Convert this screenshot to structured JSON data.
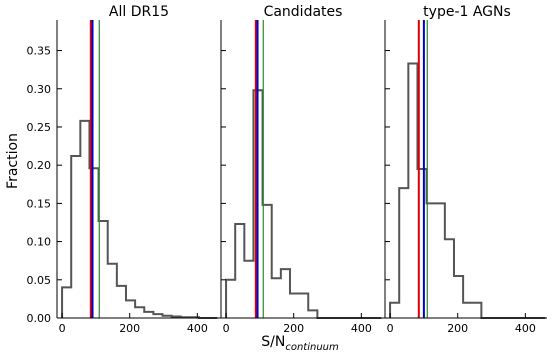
{
  "figure": {
    "ylabel": "Fraction",
    "xlabel_main": "S/N",
    "xlabel_sub": "continuum"
  },
  "colors": {
    "hist": "#555555",
    "red_line": "#e00000",
    "blue_line": "#0000cc",
    "green_line": "#2a8a2a"
  },
  "chart_data": [
    {
      "type": "histogram",
      "title": "All DR15",
      "xlim": [
        -15,
        470
      ],
      "ylim": [
        0,
        0.39
      ],
      "xticks": [
        0,
        200,
        400
      ],
      "yticks": [
        0.0,
        0.05,
        0.1,
        0.15,
        0.2,
        0.25,
        0.3,
        0.35
      ],
      "bins": [
        0,
        27,
        54,
        81,
        108,
        135,
        162,
        189,
        216,
        243,
        270,
        297,
        324,
        351,
        378,
        405,
        432,
        459
      ],
      "values": [
        0.04,
        0.212,
        0.258,
        0.196,
        0.127,
        0.071,
        0.042,
        0.023,
        0.014,
        0.008,
        0.005,
        0.003,
        0.002,
        0.001,
        0.001,
        0.0,
        0.0
      ],
      "vlines": [
        {
          "x": 85,
          "color": "red_line"
        },
        {
          "x": 90,
          "color": "blue_line"
        },
        {
          "x": 110,
          "color": "green_line"
        }
      ]
    },
    {
      "type": "histogram",
      "title": "Candidates",
      "xlim": [
        -15,
        470
      ],
      "ylim": [
        0,
        0.39
      ],
      "xticks": [
        0,
        200,
        400
      ],
      "yticks": [
        0.0,
        0.05,
        0.1,
        0.15,
        0.2,
        0.25,
        0.3,
        0.35
      ],
      "bins": [
        0,
        27,
        54,
        81,
        108,
        135,
        162,
        189,
        216,
        243,
        270,
        297,
        324,
        351,
        378,
        405,
        432,
        459
      ],
      "values": [
        0.05,
        0.123,
        0.075,
        0.298,
        0.148,
        0.052,
        0.064,
        0.032,
        0.032,
        0.01,
        0.0,
        0.0,
        0.0,
        0.0,
        0.0,
        0.0,
        0.0
      ],
      "vlines": [
        {
          "x": 88,
          "color": "red_line"
        },
        {
          "x": 93,
          "color": "blue_line"
        },
        {
          "x": 110,
          "color": "green_line"
        }
      ]
    },
    {
      "type": "histogram",
      "title": "type-1 AGNs",
      "xlim": [
        -15,
        470
      ],
      "ylim": [
        0,
        0.39
      ],
      "xticks": [
        0,
        200,
        400
      ],
      "yticks": [
        0.0,
        0.05,
        0.1,
        0.15,
        0.2,
        0.25,
        0.3,
        0.35
      ],
      "bins": [
        0,
        27,
        54,
        81,
        108,
        135,
        162,
        189,
        216,
        243,
        270,
        297,
        324,
        351,
        378,
        405,
        432,
        459
      ],
      "values": [
        0.02,
        0.17,
        0.333,
        0.195,
        0.15,
        0.15,
        0.103,
        0.055,
        0.02,
        0.02,
        0.0,
        0.0,
        0.0,
        0.0,
        0.0,
        0.0,
        0.0
      ],
      "vlines": [
        {
          "x": 85,
          "color": "red_line"
        },
        {
          "x": 100,
          "color": "blue_line"
        },
        {
          "x": 110,
          "color": "green_line"
        }
      ]
    }
  ]
}
